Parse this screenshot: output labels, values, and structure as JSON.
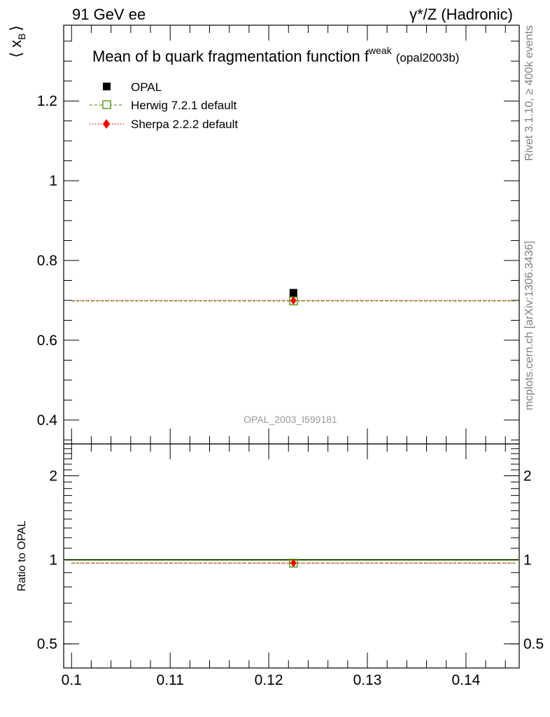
{
  "header": {
    "left": "91 GeV ee",
    "right": "γ*/Z (Hadronic)"
  },
  "side_labels": {
    "rivet": "Rivet 3.1.10, ≥ 400k events",
    "mcplots": "mcplots.cern.ch [arXiv:1306.3436]"
  },
  "chart_data": [
    {
      "type": "scatter",
      "title": "Mean of b quark fragmentation function f",
      "title_superscript": "weak",
      "title_suffix": "(opal2003b)",
      "ylabel": "⟨ x",
      "ylabel_subscript": "B",
      "ylabel_close": "⟩",
      "xlim": [
        0.0992,
        0.1454
      ],
      "ylim": [
        0.34,
        1.39
      ],
      "yticks": [
        0.4,
        0.6,
        0.8,
        1,
        1.2
      ],
      "ytick_labels": [
        "0.4",
        "0.6",
        "0.8",
        "1",
        "1.2"
      ],
      "watermark": "OPAL_2003_I599181",
      "legend_position": "top-left",
      "series": [
        {
          "name": "OPAL",
          "type": "points",
          "color": "#000000",
          "marker": "filled-square",
          "x": [
            0.1225
          ],
          "y": [
            0.719
          ],
          "yerr": [
            0.006
          ]
        },
        {
          "name": "Herwig 7.2.1 default",
          "type": "line+points",
          "color": "#5a9e1a",
          "linestyle": "dashed",
          "marker": "open-square",
          "x": [
            0.1,
            0.1225,
            0.145
          ],
          "y": [
            0.6985,
            0.6985,
            0.6985
          ]
        },
        {
          "name": "Sherpa 2.2.2 default",
          "type": "line+points",
          "color": "#ff0000",
          "linestyle": "dotted",
          "marker": "filled-diamond",
          "x": [
            0.1,
            0.1225,
            0.145
          ],
          "y": [
            0.6995,
            0.6995,
            0.6995
          ]
        }
      ]
    },
    {
      "type": "line",
      "ylabel": "Ratio to OPAL",
      "xlim": [
        0.0992,
        0.1454
      ],
      "ylim": [
        0.41,
        2.6
      ],
      "ylog": true,
      "yticks": [
        0.5,
        1,
        2
      ],
      "ytick_labels": [
        "0.5",
        "1",
        "2"
      ],
      "xticks": [
        0.1,
        0.11,
        0.12,
        0.13,
        0.14
      ],
      "xtick_labels": [
        "0.1",
        "0.11",
        "0.12",
        "0.13",
        "0.14"
      ],
      "series": [
        {
          "name": "OPAL",
          "type": "band",
          "color": "#000000",
          "y": 1.0,
          "band": [
            0.992,
            1.008
          ],
          "band_color": "#a8e07a"
        },
        {
          "name": "Herwig 7.2.1 default",
          "color": "#5a9e1a",
          "linestyle": "dashed",
          "marker": "open-square",
          "x": [
            0.1,
            0.1225,
            0.145
          ],
          "y": [
            0.973,
            0.973,
            0.973
          ]
        },
        {
          "name": "Sherpa 2.2.2 default",
          "color": "#ff0000",
          "linestyle": "dotted",
          "marker": "filled-diamond",
          "x": [
            0.1,
            0.1225,
            0.145
          ],
          "y": [
            0.974,
            0.974,
            0.974
          ]
        }
      ]
    }
  ]
}
